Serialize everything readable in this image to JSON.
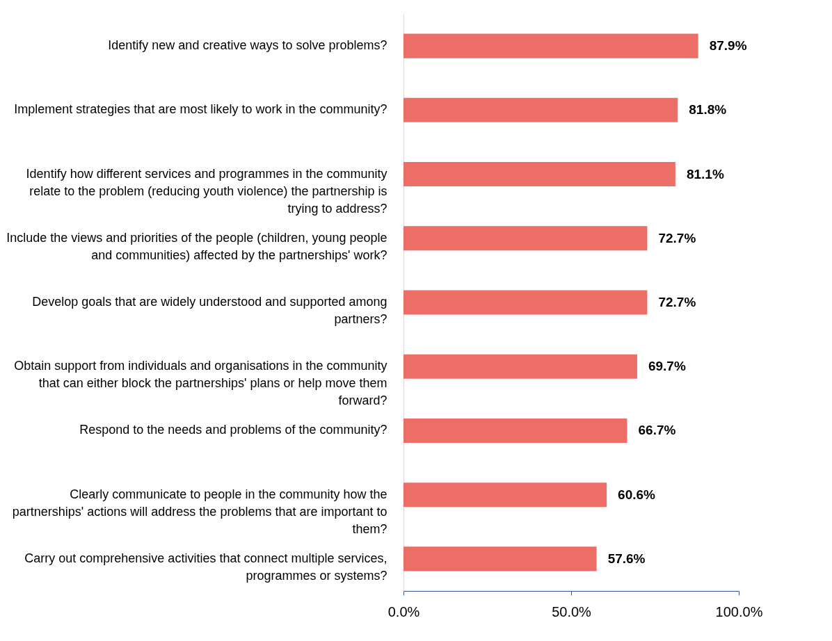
{
  "chart_data": {
    "type": "bar",
    "orientation": "horizontal",
    "categories": [
      "Identify new and creative ways to solve problems?",
      "Implement strategies that are most likely to work in the community?",
      "Identify how different services and programmes in the community relate to the problem (reducing youth violence) the partnership is trying to address?",
      "Include the views and priorities of the people (children, young people and communities) affected by the partnerships' work?",
      "Develop goals that are widely understood and supported among partners?",
      "Obtain support from individuals and organisations in the community that can either block the partnerships' plans or help move them forward?",
      "Respond to the needs and problems of the community?",
      "Clearly communicate to people in the community how the partnerships' actions will address the problems that are important to them?",
      "Carry out comprehensive activities that connect multiple services, programmes or systems?"
    ],
    "values": [
      87.9,
      81.8,
      81.1,
      72.7,
      72.7,
      69.7,
      66.7,
      60.6,
      57.6
    ],
    "value_labels": [
      "87.9%",
      "81.8%",
      "81.1%",
      "72.7%",
      "72.7%",
      "69.7%",
      "66.7%",
      "60.6%",
      "57.6%"
    ],
    "color": "#ed6d67",
    "xlim": [
      0,
      100
    ],
    "xticks": [
      {
        "value": 0,
        "label": "0.0%"
      },
      {
        "value": 50,
        "label": "50.0%"
      },
      {
        "value": 100,
        "label": "100.0%"
      }
    ],
    "grid": false
  }
}
